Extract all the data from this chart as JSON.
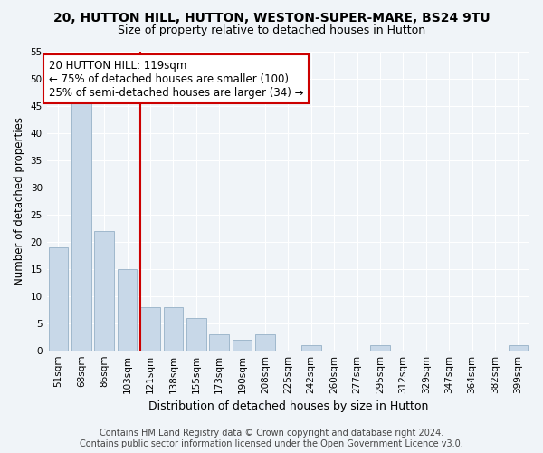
{
  "title1": "20, HUTTON HILL, HUTTON, WESTON-SUPER-MARE, BS24 9TU",
  "title2": "Size of property relative to detached houses in Hutton",
  "xlabel": "Distribution of detached houses by size in Hutton",
  "ylabel": "Number of detached properties",
  "bar_labels": [
    "51sqm",
    "68sqm",
    "86sqm",
    "103sqm",
    "121sqm",
    "138sqm",
    "155sqm",
    "173sqm",
    "190sqm",
    "208sqm",
    "225sqm",
    "242sqm",
    "260sqm",
    "277sqm",
    "295sqm",
    "312sqm",
    "329sqm",
    "347sqm",
    "364sqm",
    "382sqm",
    "399sqm"
  ],
  "bar_values": [
    19,
    46,
    22,
    15,
    8,
    8,
    6,
    3,
    2,
    3,
    0,
    1,
    0,
    0,
    1,
    0,
    0,
    0,
    0,
    0,
    1
  ],
  "bar_color": "#c8d8e8",
  "bar_edgecolor": "#a0b8cc",
  "vline_color": "#cc0000",
  "annotation_text": "20 HUTTON HILL: 119sqm\n← 75% of detached houses are smaller (100)\n25% of semi-detached houses are larger (34) →",
  "annotation_box_color": "#ffffff",
  "annotation_box_edgecolor": "#cc0000",
  "ylim": [
    0,
    55
  ],
  "yticks": [
    0,
    5,
    10,
    15,
    20,
    25,
    30,
    35,
    40,
    45,
    50,
    55
  ],
  "footer1": "Contains HM Land Registry data © Crown copyright and database right 2024.",
  "footer2": "Contains public sector information licensed under the Open Government Licence v3.0.",
  "bg_color": "#f0f4f8",
  "grid_color": "#ffffff",
  "title1_fontsize": 10,
  "title2_fontsize": 9,
  "xlabel_fontsize": 9,
  "ylabel_fontsize": 8.5,
  "tick_fontsize": 7.5,
  "annotation_fontsize": 8.5,
  "footer_fontsize": 7
}
